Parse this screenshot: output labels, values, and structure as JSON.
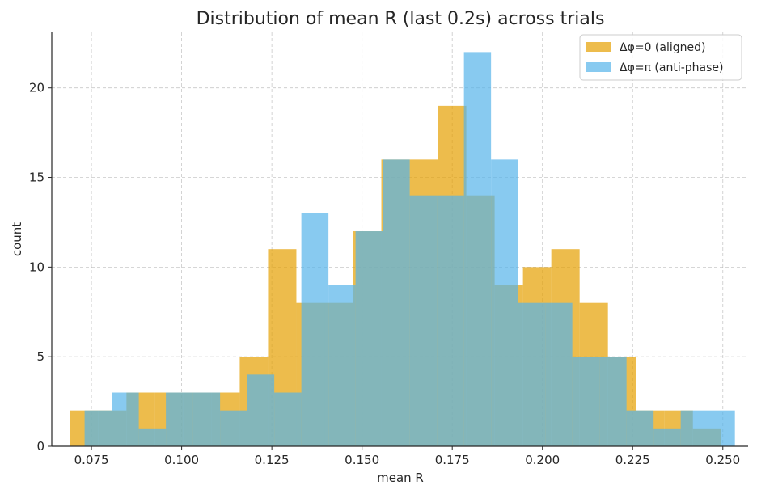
{
  "chart_data": {
    "type": "histogram",
    "title": "Distribution of mean R (last 0.2s) across trials",
    "xlabel": "mean R",
    "ylabel": "count",
    "xlim": [
      0.064,
      0.257
    ],
    "ylim": [
      0,
      23.1
    ],
    "x_ticks": [
      {
        "value": 0.075,
        "label": "0.075"
      },
      {
        "value": 0.1,
        "label": "0.100"
      },
      {
        "value": 0.125,
        "label": "0.125"
      },
      {
        "value": 0.15,
        "label": "0.150"
      },
      {
        "value": 0.175,
        "label": "0.175"
      },
      {
        "value": 0.2,
        "label": "0.200"
      },
      {
        "value": 0.225,
        "label": "0.225"
      },
      {
        "value": 0.25,
        "label": "0.250"
      }
    ],
    "y_ticks": [
      {
        "value": 0,
        "label": "0"
      },
      {
        "value": 5,
        "label": "5"
      },
      {
        "value": 10,
        "label": "10"
      },
      {
        "value": 15,
        "label": "15"
      },
      {
        "value": 20,
        "label": "20"
      }
    ],
    "grid": true,
    "legend_position": "top-right",
    "series": [
      {
        "name": "Δφ=0 (aligned)",
        "color": "#E69F00",
        "opacity": 0.7,
        "bin_start": 0.069,
        "bin_width": 0.00785,
        "counts": [
          2,
          2,
          3,
          3,
          3,
          3,
          5,
          11,
          8,
          8,
          12,
          16,
          16,
          19,
          14,
          9,
          10,
          11,
          8,
          5,
          2,
          2,
          1,
          0
        ]
      },
      {
        "name": "Δφ=π (anti-phase)",
        "color": "#56B4E9",
        "opacity": 0.7,
        "bin_start": 0.0731,
        "bin_width": 0.00751,
        "counts": [
          2,
          3,
          1,
          3,
          3,
          2,
          4,
          3,
          13,
          9,
          12,
          16,
          14,
          14,
          22,
          16,
          8,
          8,
          5,
          5,
          2,
          1,
          2,
          2
        ]
      }
    ]
  }
}
